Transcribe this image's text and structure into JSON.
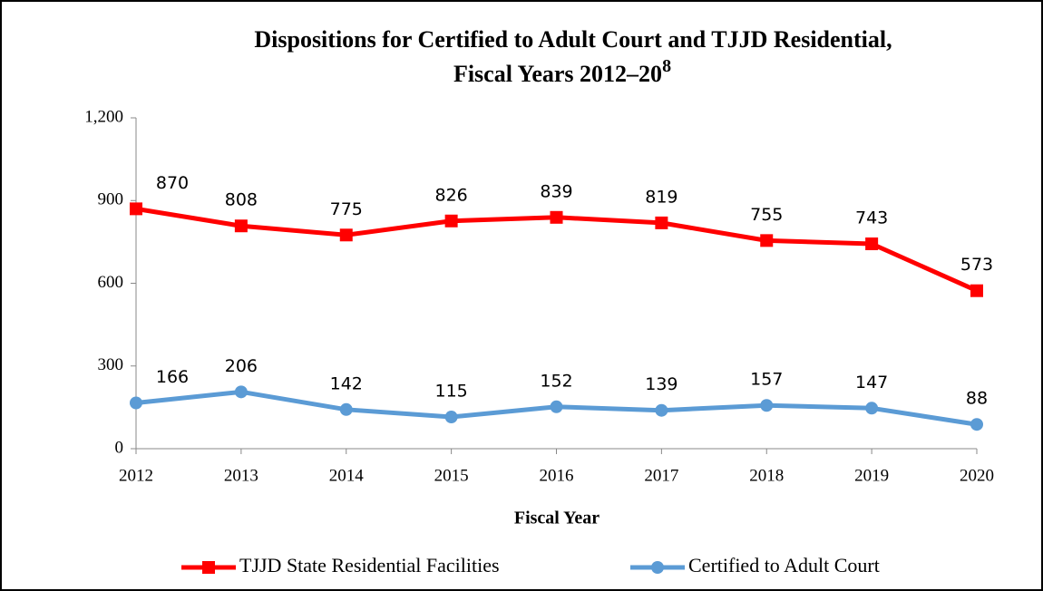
{
  "chart_data": {
    "type": "line",
    "title": [
      "Dispositions for Certified to Adult Court and TJJD Residential,",
      "Fiscal Years 2012–20"
    ],
    "title_superscript": "8",
    "x_label": "Fiscal Year",
    "categories": [
      "2012",
      "2013",
      "2014",
      "2015",
      "2016",
      "2017",
      "2018",
      "2019",
      "2020"
    ],
    "series": [
      {
        "name": "TJJD State Residential Facilities",
        "color": "#ff0000",
        "marker": "square",
        "values": [
          870,
          808,
          775,
          826,
          839,
          819,
          755,
          743,
          573
        ]
      },
      {
        "name": "Certified to Adult Court",
        "color": "#5b9bd5",
        "marker": "circle",
        "values": [
          166,
          206,
          142,
          115,
          152,
          139,
          157,
          147,
          88
        ]
      }
    ],
    "ylim": [
      0,
      1200
    ],
    "yticks": [
      0,
      300,
      600,
      900,
      {
        "value": 1200,
        "label": "1,200"
      }
    ],
    "legend": "bottom"
  }
}
